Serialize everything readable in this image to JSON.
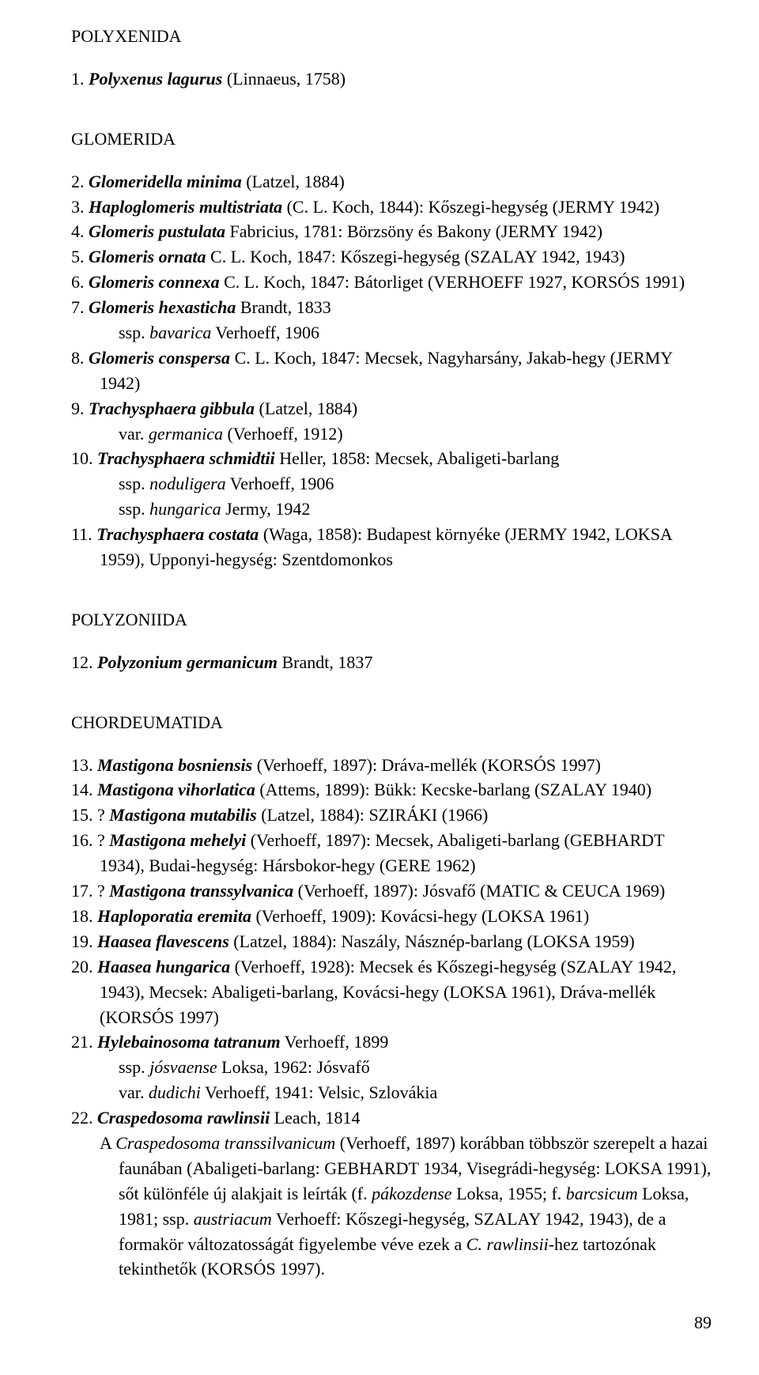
{
  "page_number": "89",
  "sections": {
    "polyxenida": "POLYXENIDA",
    "glomerida": "GLOMERIDA",
    "polyzoniida": "POLYZONIIDA",
    "chordeumatida": "CHORDEUMATIDA"
  },
  "e1": {
    "n": "1. ",
    "sp": "Polyxenus lagurus",
    "rest": " (Linnaeus, 1758)"
  },
  "e2": {
    "n": "2. ",
    "sp": "Glomeridella minima",
    "rest": " (Latzel, 1884)"
  },
  "e3": {
    "n": "3. ",
    "sp": "Haploglomeris multistriata",
    "rest": " (C. L. Koch, 1844): Kőszegi-hegység (JERMY 1942)"
  },
  "e4": {
    "n": "4. ",
    "sp": "Glomeris pustulata",
    "rest": " Fabricius, 1781: Börzsöny és Bakony (JERMY 1942)"
  },
  "e5": {
    "n": "5. ",
    "sp": "Glomeris ornata",
    "rest": " C. L. Koch, 1847: Kőszegi-hegység (SZALAY 1942, 1943)"
  },
  "e6": {
    "n": "6. ",
    "sp": "Glomeris connexa",
    "rest": " C. L. Koch, 1847: Bátorliget (VERHOEFF 1927, KORSÓS 1991)"
  },
  "e7": {
    "n": "7. ",
    "sp": "Glomeris hexasticha",
    "rest": " Brandt, 1833"
  },
  "e7a": {
    "pre": "ssp. ",
    "it": "bavarica",
    "post": "  Verhoeff, 1906"
  },
  "e8": {
    "n": "8. ",
    "sp": "Glomeris conspersa",
    "rest": " C. L. Koch, 1847: Mecsek, Nagyharsány, Jakab-hegy (JERMY 1942)"
  },
  "e9": {
    "n": "9. ",
    "sp": "Trachysphaera gibbula",
    "rest": " (Latzel, 1884)"
  },
  "e9a": {
    "pre": "var. ",
    "it": "germanica",
    "post": " (Verhoeff, 1912)"
  },
  "e10": {
    "n": "10. ",
    "sp": "Trachysphaera schmidtii",
    "rest": " Heller, 1858: Mecsek, Abaligeti-barlang"
  },
  "e10a": {
    "pre": "ssp. ",
    "it": "noduligera",
    "post": " Verhoeff, 1906"
  },
  "e10b": {
    "pre": "ssp. ",
    "it": "hungarica",
    "post": " Jermy, 1942"
  },
  "e11": {
    "n": "11. ",
    "sp": "Trachysphaera costata",
    "rest": " (Waga, 1858): Budapest környéke (JERMY 1942, LOKSA 1959), Upponyi-hegység: Szentdomonkos"
  },
  "e12": {
    "n": "12. ",
    "sp": "Polyzonium germanicum",
    "rest": " Brandt, 1837"
  },
  "e13": {
    "n": "13. ",
    "sp": "Mastigona bosniensis",
    "rest": " (Verhoeff, 1897): Dráva-mellék (KORSÓS 1997)"
  },
  "e14": {
    "n": "14. ",
    "sp": "Mastigona vihorlatica",
    "rest": " (Attems, 1899): Bükk: Kecske-barlang (SZALAY 1940)"
  },
  "e15": {
    "n": "15. ? ",
    "sp": "Mastigona mutabilis",
    "rest": " (Latzel, 1884): SZIRÁKI (1966)"
  },
  "e16": {
    "n": "16. ? ",
    "sp": "Mastigona mehelyi",
    "rest": " (Verhoeff, 1897): Mecsek, Abaligeti-barlang (GEBHARDT 1934), Budai-hegység: Hársbokor-hegy (GERE 1962)"
  },
  "e17": {
    "n": "17. ? ",
    "sp": "Mastigona transsylvanica",
    "rest": " (Verhoeff, 1897): Jósvafő (MATIC & CEUCA 1969)"
  },
  "e18": {
    "n": "18. ",
    "sp": "Haploporatia eremita",
    "rest": " (Verhoeff, 1909): Kovácsi-hegy (LOKSA 1961)"
  },
  "e19": {
    "n": "19. ",
    "sp": "Haasea flavescens",
    "rest": " (Latzel, 1884): Naszály, Násznép-barlang (LOKSA 1959)"
  },
  "e20": {
    "n": "20. ",
    "sp": "Haasea hungarica",
    "rest": " (Verhoeff, 1928): Mecsek és Kőszegi-hegység (SZALAY 1942, 1943), Mecsek: Abaligeti-barlang, Kovácsi-hegy (LOKSA 1961), Dráva-mellék (KORSÓS 1997)"
  },
  "e21": {
    "n": "21. ",
    "sp": "Hylebainosoma tatranum",
    "rest": " Verhoeff, 1899"
  },
  "e21a": {
    "pre": "ssp. ",
    "it": "jósvaense",
    "post": " Loksa, 1962: Jósvafő"
  },
  "e21b": {
    "pre": "var. ",
    "it": "dudichi",
    "post": " Verhoeff, 1941: Velsic, Szlovákia"
  },
  "e22": {
    "n": "22. ",
    "sp": "Craspedosoma rawlinsii",
    "rest": " Leach, 1814"
  },
  "e22note": {
    "t1": "A ",
    "i1": "Craspedosoma transsilvanicum",
    "t2": " (Verhoeff, 1897) korábban többször szerepelt a hazai faunában (Abaligeti-barlang: GEBHARDT 1934, Visegrádi-hegység: LOKSA 1991), sőt különféle új alakjait is leírták (f. ",
    "i2": "pákozdense",
    "t3": " Loksa, 1955; f. ",
    "i3": "barcsicum",
    "t4": " Loksa, 1981; ssp. ",
    "i4": "austriacum",
    "t5": " Verhoeff: Kőszegi-hegység, SZALAY 1942, 1943), de a formakör változatosságát figyelembe véve ezek a ",
    "i5": "C. rawlinsii",
    "t6": "-hez tartozónak tekinthetők (KORSÓS 1997)."
  }
}
